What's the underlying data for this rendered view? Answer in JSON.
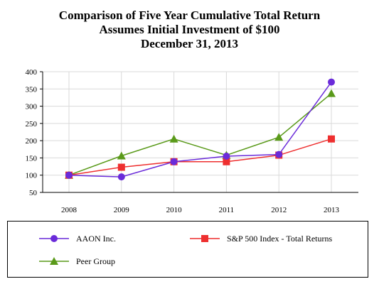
{
  "title": {
    "line1": "Comparison of Five Year Cumulative Total Return",
    "line2": "Assumes Initial Investment of $100",
    "line3": "December 31, 2013"
  },
  "chart_data": {
    "type": "line",
    "title": "Comparison of Five Year Cumulative Total Return",
    "subtitle": "Assumes Initial Investment of $100 — December 31, 2013",
    "xlabel": "",
    "ylabel": "",
    "categories": [
      "2008",
      "2009",
      "2010",
      "2011",
      "2012",
      "2013"
    ],
    "ylim": [
      50,
      400
    ],
    "yticks": [
      50,
      100,
      150,
      200,
      250,
      300,
      350,
      400
    ],
    "grid": true,
    "legend_position": "bottom",
    "series": [
      {
        "name": "AAON Inc.",
        "color": "#6a2bd9",
        "marker": "circle",
        "values": [
          100,
          95,
          139,
          155,
          160,
          370
        ]
      },
      {
        "name": "S&P 500 Index - Total Returns",
        "color": "#ee2f2f",
        "marker": "square",
        "values": [
          100,
          123,
          139,
          139,
          158,
          205
        ]
      },
      {
        "name": "Peer Group",
        "color": "#5a9a1a",
        "marker": "triangle",
        "values": [
          100,
          156,
          205,
          158,
          210,
          337
        ]
      }
    ]
  }
}
